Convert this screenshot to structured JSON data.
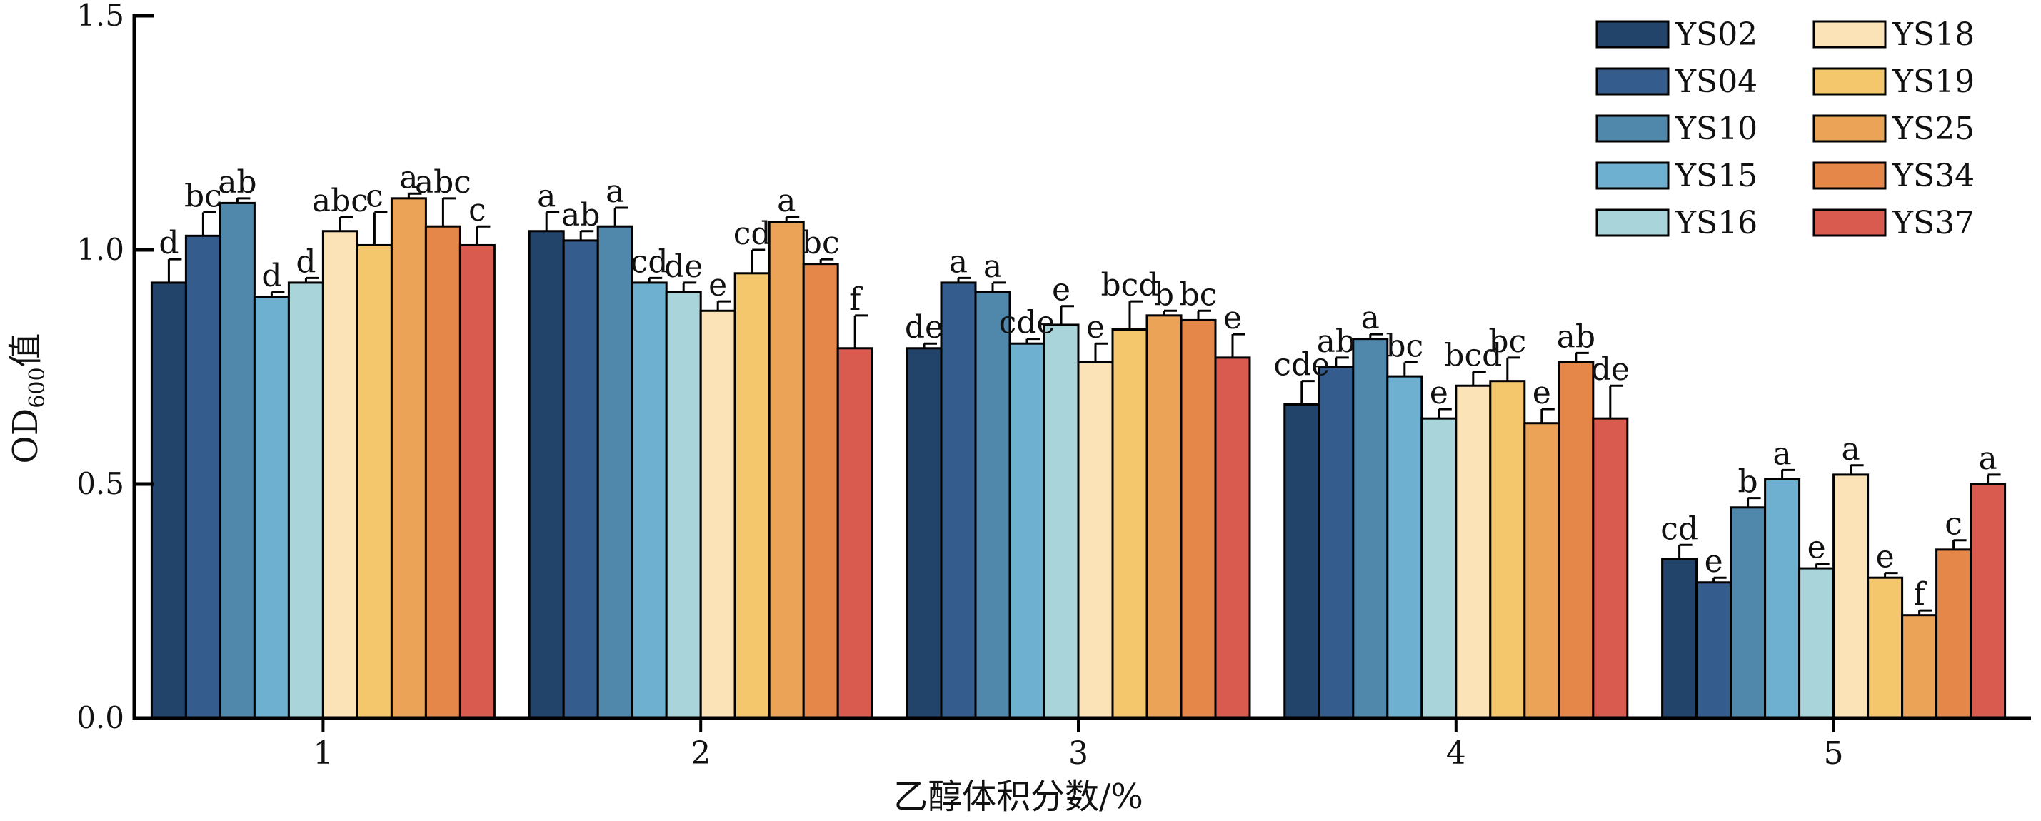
{
  "chart_data": {
    "type": "bar",
    "xlabel": "乙醇体积分数/%",
    "ylabel": {
      "main": "OD",
      "sub": "600",
      "suffix": "值"
    },
    "ylim": [
      0,
      1.5
    ],
    "yticks": [
      "0.0",
      "0.5",
      "1.0",
      "1.5"
    ],
    "categories": [
      "1",
      "2",
      "3",
      "4",
      "5"
    ],
    "legend_position": "top-right",
    "grid": false,
    "series": [
      {
        "name": "YS02",
        "color": "#22446b",
        "values": [
          0.93,
          1.04,
          0.79,
          0.67,
          0.34
        ],
        "errors": [
          0.05,
          0.04,
          0.01,
          0.05,
          0.03
        ],
        "labels": [
          "d",
          "a",
          "de",
          "cde",
          "cd"
        ]
      },
      {
        "name": "YS04",
        "color": "#345d8e",
        "values": [
          1.03,
          1.02,
          0.93,
          0.75,
          0.29
        ],
        "errors": [
          0.05,
          0.02,
          0.01,
          0.02,
          0.01
        ],
        "labels": [
          "bc",
          "ab",
          "a",
          "ab",
          "e"
        ]
      },
      {
        "name": "YS10",
        "color": "#4f88aa",
        "values": [
          1.1,
          1.05,
          0.91,
          0.81,
          0.45
        ],
        "errors": [
          0.01,
          0.04,
          0.02,
          0.01,
          0.02
        ],
        "labels": [
          "ab",
          "a",
          "a",
          "a",
          "b"
        ]
      },
      {
        "name": "YS15",
        "color": "#6db0cf",
        "values": [
          0.9,
          0.93,
          0.8,
          0.73,
          0.51
        ],
        "errors": [
          0.01,
          0.01,
          0.01,
          0.03,
          0.02
        ],
        "labels": [
          "d",
          "cd",
          "cde",
          "bc",
          "a"
        ]
      },
      {
        "name": "YS16",
        "color": "#a8d4da",
        "values": [
          0.93,
          0.91,
          0.84,
          0.64,
          0.32
        ],
        "errors": [
          0.01,
          0.02,
          0.04,
          0.02,
          0.01
        ],
        "labels": [
          "d",
          "de",
          "e",
          "e",
          "e"
        ]
      },
      {
        "name": "YS18",
        "color": "#fbe3b7",
        "values": [
          1.04,
          0.87,
          0.76,
          0.71,
          0.52
        ],
        "errors": [
          0.03,
          0.02,
          0.04,
          0.03,
          0.02
        ],
        "labels": [
          "abc",
          "e",
          "e",
          "bcd",
          "a"
        ]
      },
      {
        "name": "YS19",
        "color": "#f5c76c",
        "values": [
          1.01,
          0.95,
          0.83,
          0.72,
          0.3
        ],
        "errors": [
          0.07,
          0.05,
          0.06,
          0.05,
          0.01
        ],
        "labels": [
          "c",
          "cd",
          "bcd",
          "bc",
          "e"
        ]
      },
      {
        "name": "YS25",
        "color": "#eba457",
        "values": [
          1.11,
          1.06,
          0.86,
          0.63,
          0.22
        ],
        "errors": [
          0.01,
          0.01,
          0.01,
          0.03,
          0.01
        ],
        "labels": [
          "a",
          "a",
          "b",
          "e",
          "f"
        ]
      },
      {
        "name": "YS34",
        "color": "#e6874a",
        "values": [
          1.05,
          0.97,
          0.85,
          0.76,
          0.36
        ],
        "errors": [
          0.06,
          0.01,
          0.02,
          0.02,
          0.02
        ],
        "labels": [
          "abc",
          "bc",
          "bc",
          "ab",
          "c"
        ]
      },
      {
        "name": "YS37",
        "color": "#d95b4f",
        "values": [
          1.01,
          0.79,
          0.77,
          0.64,
          0.5
        ],
        "errors": [
          0.04,
          0.07,
          0.05,
          0.07,
          0.02
        ],
        "labels": [
          "c",
          "f",
          "e",
          "de",
          "a"
        ]
      }
    ]
  }
}
